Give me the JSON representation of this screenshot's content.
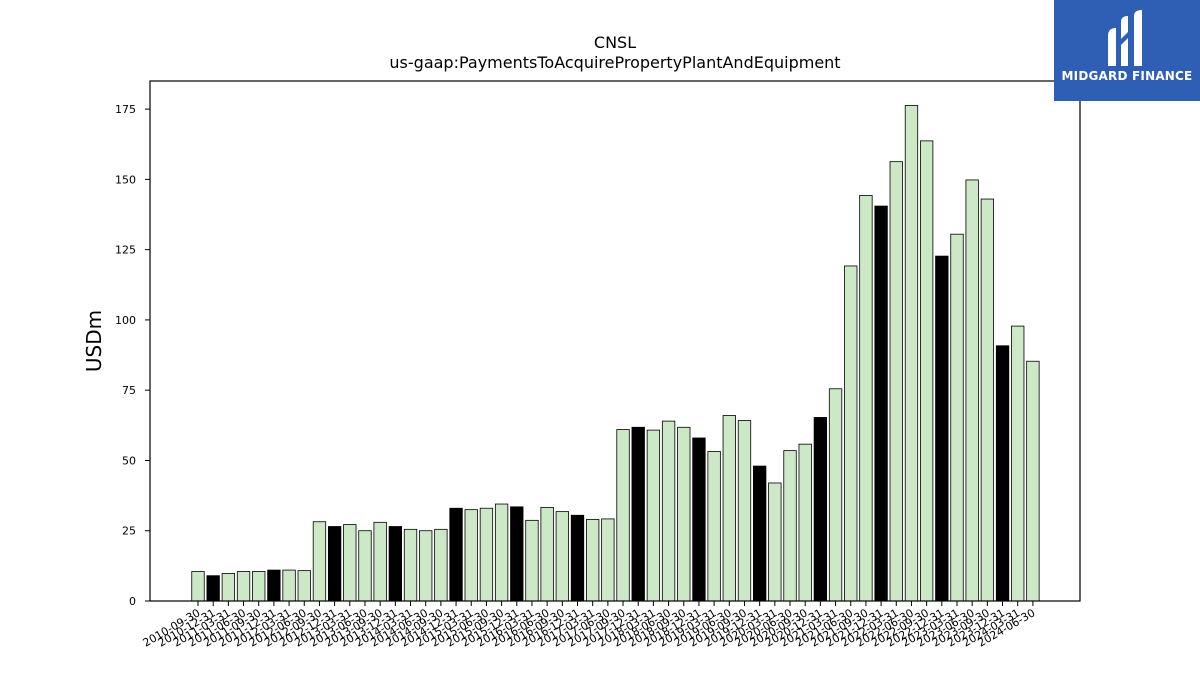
{
  "chart_data": {
    "type": "bar",
    "title": "CNSL",
    "subtitle": "us-gaap:PaymentsToAcquirePropertyPlantAndEquipment",
    "xlabel": "",
    "ylabel": "USDm",
    "ylim": [
      0,
      185
    ],
    "yticks": [
      0,
      25,
      50,
      75,
      100,
      125,
      150,
      175
    ],
    "grid": false,
    "categories": [
      "2010-09-30",
      "2010-12-31",
      "2011-03-31",
      "2011-06-30",
      "2011-09-30",
      "2011-12-31",
      "2012-03-31",
      "2012-06-30",
      "2012-09-30",
      "2012-12-31",
      "2013-03-31",
      "2013-06-30",
      "2013-09-30",
      "2013-12-31",
      "2014-03-31",
      "2014-06-30",
      "2014-09-30",
      "2014-12-31",
      "2015-03-31",
      "2015-06-30",
      "2015-09-30",
      "2015-12-31",
      "2016-03-31",
      "2016-06-30",
      "2016-09-30",
      "2016-12-31",
      "2017-03-31",
      "2017-06-30",
      "2017-09-30",
      "2017-12-31",
      "2018-03-31",
      "2018-06-30",
      "2018-09-30",
      "2018-12-31",
      "2019-03-31",
      "2019-06-30",
      "2019-09-30",
      "2019-12-31",
      "2020-03-31",
      "2020-06-30",
      "2020-09-30",
      "2020-12-31",
      "2021-03-31",
      "2021-06-30",
      "2021-09-30",
      "2021-12-31",
      "2022-03-31",
      "2022-06-30",
      "2022-09-30",
      "2022-12-31",
      "2023-03-31",
      "2023-06-30",
      "2023-09-30",
      "2023-12-31",
      "2024-03-31",
      "2024-06-30"
    ],
    "values": [
      10.5,
      9,
      9.8,
      10.5,
      10.5,
      11,
      11,
      10.8,
      28.2,
      26.5,
      27.2,
      25,
      28,
      26.5,
      25.5,
      25,
      25.5,
      33,
      32.5,
      33,
      34.5,
      33.5,
      28.7,
      33.3,
      31.8,
      30.5,
      29,
      29.2,
      61,
      61.8,
      60.8,
      64,
      61.8,
      58,
      53.2,
      66,
      64.2,
      48,
      42,
      53.5,
      55.8,
      65.3,
      75.5,
      119.2,
      144.3,
      140.5,
      156.3,
      176.3,
      163.7,
      122.7,
      130.5,
      149.8,
      143,
      90.8,
      97.8,
      85.3
    ],
    "highlighted": [
      false,
      true,
      false,
      false,
      false,
      true,
      false,
      false,
      false,
      true,
      false,
      false,
      false,
      true,
      false,
      false,
      false,
      true,
      false,
      false,
      false,
      true,
      false,
      false,
      false,
      true,
      false,
      false,
      false,
      true,
      false,
      false,
      false,
      true,
      false,
      false,
      false,
      true,
      false,
      false,
      false,
      true,
      false,
      false,
      false,
      true,
      false,
      false,
      false,
      true,
      false,
      false,
      false,
      true,
      false,
      false
    ],
    "colors": {
      "bar": "#cce8c6",
      "highlight": "#000000",
      "edge": "#000000"
    }
  },
  "logo": {
    "text": "MIDGARD FINANCE",
    "color": "#2f5fb5"
  }
}
